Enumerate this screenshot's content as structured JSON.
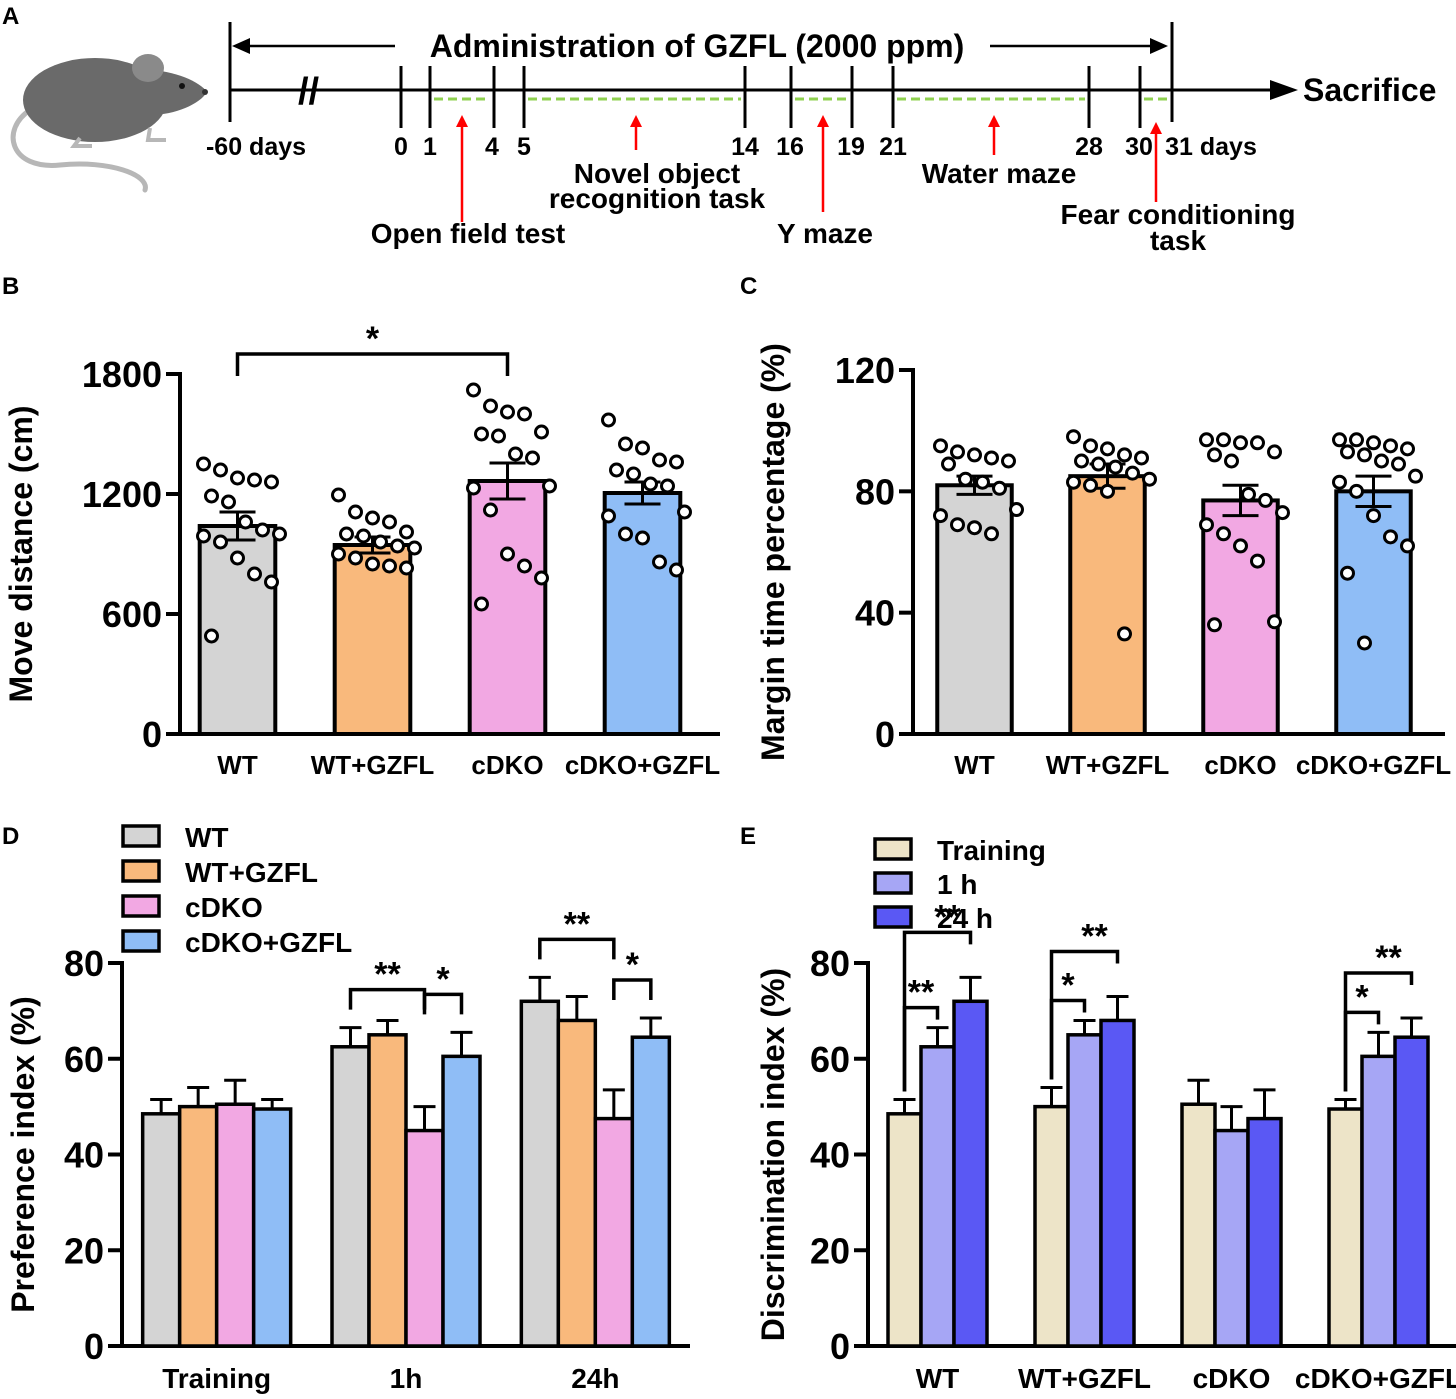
{
  "panels": {
    "a": "A",
    "b": "B",
    "c": "C",
    "d": "D",
    "e": "E"
  },
  "colors": {
    "wt": "#d4d4d4",
    "wt_gzfl": "#f9b97c",
    "cdko": "#f2a8e3",
    "cdko_gzfl": "#8fbdf6",
    "training": "#ede4c8",
    "h1": "#a6a6f5",
    "h24": "#5a58f4",
    "arrow": "#ff0000",
    "dash": "#8fd14f"
  },
  "timeline": {
    "title": "Administration of GZFL (2000 ppm)",
    "end_label": "Sacrifice",
    "break_mark": "//",
    "ticks": [
      {
        "label": "-60 days"
      },
      {
        "label": "0"
      },
      {
        "label": "1"
      },
      {
        "label": "4"
      },
      {
        "label": "5"
      },
      {
        "label": "14"
      },
      {
        "label": "16"
      },
      {
        "label": "19"
      },
      {
        "label": "21"
      },
      {
        "label": "28"
      },
      {
        "label": "30"
      },
      {
        "label": "31 days"
      }
    ],
    "events": [
      {
        "lines": [
          "Open field test"
        ]
      },
      {
        "lines": [
          "Novel object",
          "recognition task"
        ]
      },
      {
        "lines": [
          "Y maze"
        ]
      },
      {
        "lines": [
          "Water maze"
        ]
      },
      {
        "lines": [
          "Fear conditioning",
          "task"
        ]
      }
    ]
  },
  "chart_data": [
    {
      "panel": "B",
      "type": "bar",
      "ylabel": "Move distance (cm)",
      "ylim": [
        0,
        1800
      ],
      "yticks": [
        "0",
        "600",
        "1200",
        "1800"
      ],
      "categories": [
        "WT",
        "WT+GZFL",
        "cDKO",
        "cDKO+GZFL"
      ],
      "values": [
        1040,
        945,
        1265,
        1205
      ],
      "errors": [
        70,
        40,
        90,
        55
      ],
      "points": [
        [
          1350,
          1320,
          1280,
          1270,
          1260,
          1190,
          1160,
          1060,
          1020,
          1000,
          990,
          960,
          880,
          800,
          760,
          490
        ],
        [
          1195,
          1110,
          1080,
          1060,
          1010,
          1000,
          990,
          960,
          940,
          930,
          900,
          880,
          850,
          840,
          830
        ],
        [
          1720,
          1640,
          1610,
          1600,
          1510,
          1500,
          1490,
          1400,
          1380,
          1240,
          1230,
          1120,
          900,
          840,
          780,
          650
        ],
        [
          1570,
          1450,
          1430,
          1370,
          1360,
          1320,
          1300,
          1250,
          1240,
          1110,
          1090,
          1000,
          980,
          860,
          820
        ]
      ],
      "significance": [
        {
          "from": 0,
          "to": 2,
          "label": "*"
        }
      ]
    },
    {
      "panel": "C",
      "type": "bar",
      "ylabel": "Margin time percentage (%)",
      "ylim": [
        0,
        120
      ],
      "yticks": [
        "0",
        "40",
        "80",
        "120"
      ],
      "categories": [
        "WT",
        "WT+GZFL",
        "cDKO",
        "cDKO+GZFL"
      ],
      "values": [
        82,
        85,
        77,
        80
      ],
      "errors": [
        3,
        4,
        5,
        5
      ],
      "points": [
        [
          95,
          93,
          92,
          91,
          90,
          89,
          84,
          83,
          81,
          74,
          72,
          69,
          68,
          66
        ],
        [
          98,
          95,
          94,
          92,
          91,
          90,
          89,
          88,
          86,
          84,
          83,
          82,
          80,
          33
        ],
        [
          97,
          97,
          96,
          96,
          93,
          92,
          90,
          79,
          77,
          73,
          69,
          66,
          62,
          57,
          37,
          36
        ],
        [
          97,
          97,
          96,
          95,
          94,
          93,
          92,
          90,
          89,
          85,
          83,
          80,
          72,
          65,
          62,
          53,
          30
        ]
      ],
      "significance": []
    },
    {
      "panel": "D",
      "type": "bar",
      "ylabel": "Preference index (%)",
      "ylim": [
        0,
        80
      ],
      "yticks": [
        "0",
        "20",
        "40",
        "60",
        "80"
      ],
      "categories": [
        "Training",
        "1h",
        "24h"
      ],
      "series": [
        {
          "name": "WT",
          "values": [
            48.5,
            62.5,
            72
          ],
          "errors": [
            3,
            4,
            5
          ]
        },
        {
          "name": "WT+GZFL",
          "values": [
            50,
            65,
            68
          ],
          "errors": [
            4,
            3,
            5
          ]
        },
        {
          "name": "cDKO",
          "values": [
            50.5,
            45,
            47.5
          ],
          "errors": [
            5,
            5,
            6
          ]
        },
        {
          "name": "cDKO+GZFL",
          "values": [
            49.5,
            60.5,
            64.5
          ],
          "errors": [
            2,
            5,
            4
          ]
        }
      ],
      "significance": [
        {
          "category": 1,
          "from": 0,
          "to": 2,
          "label": "**"
        },
        {
          "category": 1,
          "from": 2,
          "to": 3,
          "label": "*"
        },
        {
          "category": 2,
          "from": 0,
          "to": 2,
          "label": "**"
        },
        {
          "category": 2,
          "from": 2,
          "to": 3,
          "label": "*"
        }
      ]
    },
    {
      "panel": "E",
      "type": "bar",
      "ylabel": "Discrimination index (%)",
      "ylim": [
        0,
        80
      ],
      "yticks": [
        "0",
        "20",
        "40",
        "60",
        "80"
      ],
      "categories": [
        "WT",
        "WT+GZFL",
        "cDKO",
        "cDKO+GZFL"
      ],
      "series": [
        {
          "name": "Training",
          "values": [
            48.5,
            50,
            50.5,
            49.5
          ],
          "errors": [
            3,
            4,
            5,
            2
          ]
        },
        {
          "name": "1 h",
          "values": [
            62.5,
            65,
            45,
            60.5
          ],
          "errors": [
            4,
            3,
            5,
            5
          ]
        },
        {
          "name": "24 h",
          "values": [
            72,
            68,
            47.5,
            64.5
          ],
          "errors": [
            5,
            5,
            6,
            4
          ]
        }
      ],
      "significance": [
        {
          "category": 0,
          "from": 0,
          "to": 1,
          "label": "**"
        },
        {
          "category": 0,
          "from": 0,
          "to": 2,
          "label": "**"
        },
        {
          "category": 1,
          "from": 0,
          "to": 1,
          "label": "*"
        },
        {
          "category": 1,
          "from": 0,
          "to": 2,
          "label": "**"
        },
        {
          "category": 3,
          "from": 0,
          "to": 1,
          "label": "*"
        },
        {
          "category": 3,
          "from": 0,
          "to": 2,
          "label": "**"
        }
      ]
    }
  ]
}
